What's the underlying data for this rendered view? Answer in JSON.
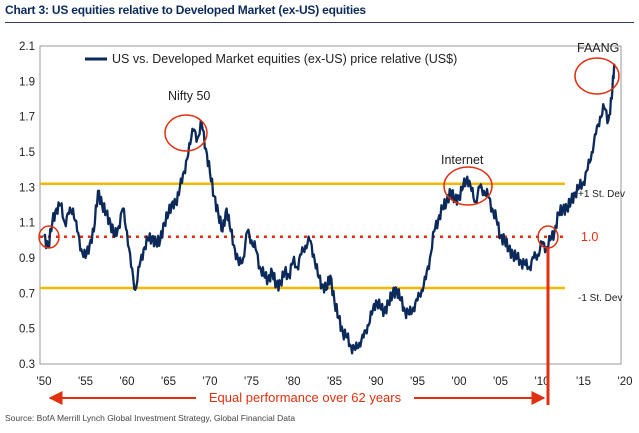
{
  "chart_data": {
    "type": "line",
    "title": "Chart 3: US equities relative to Developed Market (ex-US) equities",
    "legend": "US vs. Developed Market equities (ex-US) price relative (US$)",
    "source": "Source: BofA Merrill Lynch Global Investment Strategy, Global Financial Data",
    "xlim": [
      1950,
      2020
    ],
    "ylim": [
      0.3,
      2.1
    ],
    "x_ticks": [
      "'50",
      "'55",
      "'60",
      "'65",
      "'70",
      "'75",
      "'80",
      "'85",
      "'90",
      "'95",
      "'00",
      "'05",
      "'10",
      "'15",
      "'20"
    ],
    "y_ticks": [
      "2.1",
      "1.9",
      "1.7",
      "1.5",
      "1.3",
      "1.1",
      "0.9",
      "0.7",
      "0.5",
      "0.3"
    ],
    "reference_lines": {
      "plus_sd": {
        "label": "+1 St. Dev",
        "value": 1.32,
        "color": "#f5b800"
      },
      "mean": {
        "label": "1.0",
        "value": 1.02,
        "color": "#e03010"
      },
      "minus_sd": {
        "label": "-1 St. Dev",
        "value": 0.73,
        "color": "#f5b800"
      }
    },
    "annotations": {
      "nifty50": "Nifty 50",
      "internet": "Internet",
      "faang": "FAANG",
      "equal_performance": "Equal performance over 62 years"
    },
    "series": [
      {
        "name": "US vs. Developed Market equities (ex-US) price relative (US$)",
        "color": "#0b2a5b",
        "x": [
          1950.0,
          1950.5,
          1951.0,
          1951.5,
          1952.0,
          1952.5,
          1953.0,
          1953.5,
          1954.0,
          1954.5,
          1955.0,
          1955.5,
          1956.0,
          1956.5,
          1957.0,
          1957.5,
          1958.0,
          1958.5,
          1959.0,
          1959.5,
          1960.0,
          1960.5,
          1961.0,
          1961.5,
          1962.0,
          1962.5,
          1963.0,
          1963.5,
          1964.0,
          1964.5,
          1965.0,
          1965.5,
          1966.0,
          1966.5,
          1967.0,
          1967.5,
          1968.0,
          1968.5,
          1969.0,
          1969.5,
          1970.0,
          1970.5,
          1971.0,
          1971.5,
          1972.0,
          1972.5,
          1973.0,
          1973.5,
          1974.0,
          1974.5,
          1975.0,
          1975.5,
          1976.0,
          1976.5,
          1977.0,
          1977.5,
          1978.0,
          1978.5,
          1979.0,
          1979.5,
          1980.0,
          1980.5,
          1981.0,
          1981.5,
          1982.0,
          1982.5,
          1983.0,
          1983.5,
          1984.0,
          1984.5,
          1985.0,
          1985.5,
          1986.0,
          1986.5,
          1987.0,
          1987.5,
          1988.0,
          1988.5,
          1989.0,
          1989.5,
          1990.0,
          1990.5,
          1991.0,
          1991.5,
          1992.0,
          1992.5,
          1993.0,
          1993.5,
          1994.0,
          1994.5,
          1995.0,
          1995.5,
          1996.0,
          1996.5,
          1997.0,
          1997.5,
          1998.0,
          1998.5,
          1999.0,
          1999.5,
          2000.0,
          2000.5,
          2001.0,
          2001.5,
          2002.0,
          2002.5,
          2003.0,
          2003.5,
          2004.0,
          2004.5,
          2005.0,
          2005.5,
          2006.0,
          2006.5,
          2007.0,
          2007.5,
          2008.0,
          2008.5,
          2009.0,
          2009.5,
          2010.0,
          2010.5,
          2011.0,
          2011.5,
          2012.0,
          2012.5,
          2013.0,
          2013.5,
          2014.0,
          2014.5,
          2015.0,
          2015.5,
          2016.0,
          2016.5,
          2017.0,
          2017.5,
          2018.0,
          2018.4,
          2018.7
        ],
        "y": [
          1.02,
          0.96,
          1.1,
          1.18,
          1.2,
          1.1,
          1.15,
          1.18,
          1.05,
          0.95,
          0.9,
          0.98,
          1.05,
          1.28,
          1.2,
          1.15,
          1.1,
          1.02,
          1.08,
          1.18,
          1.05,
          0.85,
          0.72,
          0.85,
          0.95,
          1.0,
          1.02,
          0.98,
          1.0,
          1.1,
          1.15,
          1.22,
          1.2,
          1.35,
          1.38,
          1.55,
          1.62,
          1.58,
          1.66,
          1.52,
          1.38,
          1.25,
          1.15,
          1.05,
          1.18,
          1.05,
          0.95,
          0.86,
          0.9,
          1.05,
          1.0,
          0.95,
          0.85,
          0.8,
          0.78,
          0.82,
          0.74,
          0.76,
          0.82,
          0.8,
          0.88,
          0.85,
          0.92,
          0.97,
          1.0,
          0.92,
          0.8,
          0.75,
          0.72,
          0.8,
          0.65,
          0.56,
          0.48,
          0.45,
          0.4,
          0.38,
          0.42,
          0.45,
          0.52,
          0.58,
          0.66,
          0.62,
          0.6,
          0.64,
          0.7,
          0.72,
          0.66,
          0.6,
          0.58,
          0.62,
          0.66,
          0.72,
          0.78,
          0.9,
          1.05,
          1.12,
          1.18,
          1.22,
          1.28,
          1.22,
          1.25,
          1.3,
          1.36,
          1.28,
          1.22,
          1.3,
          1.28,
          1.25,
          1.18,
          1.12,
          1.02,
          1.0,
          0.95,
          0.92,
          0.9,
          0.88,
          0.86,
          0.85,
          0.9,
          0.92,
          0.98,
          0.96,
          1.0,
          1.05,
          1.15,
          1.18,
          1.18,
          1.22,
          1.27,
          1.3,
          1.33,
          1.4,
          1.5,
          1.6,
          1.7,
          1.75,
          1.68,
          1.8,
          2.0
        ]
      }
    ]
  }
}
